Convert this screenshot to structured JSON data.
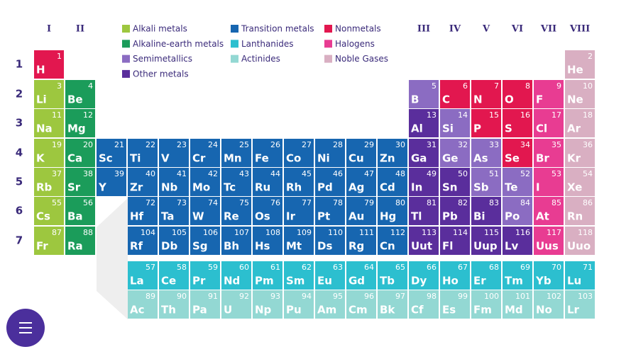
{
  "groups": [
    "I",
    "II",
    "III",
    "IV",
    "V",
    "VI",
    "VII",
    "VIII"
  ],
  "periods": [
    "1",
    "2",
    "3",
    "4",
    "5",
    "6",
    "7"
  ],
  "legend": [
    [
      {
        "name": "Alkali metals",
        "color": "#9dc73f"
      },
      {
        "name": "Alkaline-earth metals",
        "color": "#1b9c5a"
      },
      {
        "name": "Semimetallics",
        "color": "#8b6cc2"
      },
      {
        "name": "Other metals",
        "color": "#5a2e9c"
      }
    ],
    [
      {
        "name": "Transition metals",
        "color": "#1766b0"
      },
      {
        "name": "Lanthanides",
        "color": "#2cbfcf"
      },
      {
        "name": "Actinides",
        "color": "#93d8d3"
      }
    ],
    [
      {
        "name": "Nonmetals",
        "color": "#e2174f"
      },
      {
        "name": "Halogens",
        "color": "#e83c92"
      },
      {
        "name": "Noble Gases",
        "color": "#d9afc2"
      }
    ]
  ],
  "elements": [
    {
      "number": 1,
      "symbol": "H",
      "category": "Nonmetals"
    },
    {
      "number": 2,
      "symbol": "He",
      "category": "Noble Gases"
    },
    {
      "number": 3,
      "symbol": "Li",
      "category": "Alkali metals"
    },
    {
      "number": 4,
      "symbol": "Be",
      "category": "Alkaline-earth metals"
    },
    {
      "number": 5,
      "symbol": "B",
      "category": "Semimetallics"
    },
    {
      "number": 6,
      "symbol": "C",
      "category": "Nonmetals"
    },
    {
      "number": 7,
      "symbol": "N",
      "category": "Nonmetals"
    },
    {
      "number": 8,
      "symbol": "O",
      "category": "Nonmetals"
    },
    {
      "number": 9,
      "symbol": "F",
      "category": "Halogens"
    },
    {
      "number": 10,
      "symbol": "Ne",
      "category": "Noble Gases"
    },
    {
      "number": 11,
      "symbol": "Na",
      "category": "Alkali metals"
    },
    {
      "number": 12,
      "symbol": "Mg",
      "category": "Alkaline-earth metals"
    },
    {
      "number": 13,
      "symbol": "Al",
      "category": "Other metals"
    },
    {
      "number": 14,
      "symbol": "Si",
      "category": "Semimetallics"
    },
    {
      "number": 15,
      "symbol": "P",
      "category": "Nonmetals"
    },
    {
      "number": 16,
      "symbol": "S",
      "category": "Nonmetals"
    },
    {
      "number": 17,
      "symbol": "Cl",
      "category": "Halogens"
    },
    {
      "number": 18,
      "symbol": "Ar",
      "category": "Noble Gases"
    },
    {
      "number": 19,
      "symbol": "K",
      "category": "Alkali metals"
    },
    {
      "number": 20,
      "symbol": "Ca",
      "category": "Alkaline-earth metals"
    },
    {
      "number": 21,
      "symbol": "Sc",
      "category": "Transition metals"
    },
    {
      "number": 22,
      "symbol": "Ti",
      "category": "Transition metals"
    },
    {
      "number": 23,
      "symbol": "V",
      "category": "Transition metals"
    },
    {
      "number": 24,
      "symbol": "Cr",
      "category": "Transition metals"
    },
    {
      "number": 25,
      "symbol": "Mn",
      "category": "Transition metals"
    },
    {
      "number": 26,
      "symbol": "Fe",
      "category": "Transition metals"
    },
    {
      "number": 27,
      "symbol": "Co",
      "category": "Transition metals"
    },
    {
      "number": 28,
      "symbol": "Ni",
      "category": "Transition metals"
    },
    {
      "number": 29,
      "symbol": "Cu",
      "category": "Transition metals"
    },
    {
      "number": 30,
      "symbol": "Zn",
      "category": "Transition metals"
    },
    {
      "number": 31,
      "symbol": "Ga",
      "category": "Other metals"
    },
    {
      "number": 32,
      "symbol": "Ge",
      "category": "Semimetallics"
    },
    {
      "number": 33,
      "symbol": "As",
      "category": "Semimetallics"
    },
    {
      "number": 34,
      "symbol": "Se",
      "category": "Nonmetals"
    },
    {
      "number": 35,
      "symbol": "Br",
      "category": "Halogens"
    },
    {
      "number": 36,
      "symbol": "Kr",
      "category": "Noble Gases"
    },
    {
      "number": 37,
      "symbol": "Rb",
      "category": "Alkali metals"
    },
    {
      "number": 38,
      "symbol": "Sr",
      "category": "Alkaline-earth metals"
    },
    {
      "number": 39,
      "symbol": "Y",
      "category": "Transition metals"
    },
    {
      "number": 40,
      "symbol": "Zr",
      "category": "Transition metals"
    },
    {
      "number": 41,
      "symbol": "Nb",
      "category": "Transition metals"
    },
    {
      "number": 42,
      "symbol": "Mo",
      "category": "Transition metals"
    },
    {
      "number": 43,
      "symbol": "Tc",
      "category": "Transition metals"
    },
    {
      "number": 44,
      "symbol": "Ru",
      "category": "Transition metals"
    },
    {
      "number": 45,
      "symbol": "Rh",
      "category": "Transition metals"
    },
    {
      "number": 46,
      "symbol": "Pd",
      "category": "Transition metals"
    },
    {
      "number": 47,
      "symbol": "Ag",
      "category": "Transition metals"
    },
    {
      "number": 48,
      "symbol": "Cd",
      "category": "Transition metals"
    },
    {
      "number": 49,
      "symbol": "In",
      "category": "Other metals"
    },
    {
      "number": 50,
      "symbol": "Sn",
      "category": "Other metals"
    },
    {
      "number": 51,
      "symbol": "Sb",
      "category": "Semimetallics"
    },
    {
      "number": 52,
      "symbol": "Te",
      "category": "Semimetallics"
    },
    {
      "number": 53,
      "symbol": "I",
      "category": "Halogens"
    },
    {
      "number": 54,
      "symbol": "Xe",
      "category": "Noble Gases"
    },
    {
      "number": 55,
      "symbol": "Cs",
      "category": "Alkali metals"
    },
    {
      "number": 56,
      "symbol": "Ba",
      "category": "Alkaline-earth metals"
    },
    {
      "number": 57,
      "symbol": "La",
      "category": "Lanthanides"
    },
    {
      "number": 58,
      "symbol": "Ce",
      "category": "Lanthanides"
    },
    {
      "number": 59,
      "symbol": "Pr",
      "category": "Lanthanides"
    },
    {
      "number": 60,
      "symbol": "Nd",
      "category": "Lanthanides"
    },
    {
      "number": 61,
      "symbol": "Pm",
      "category": "Lanthanides"
    },
    {
      "number": 62,
      "symbol": "Sm",
      "category": "Lanthanides"
    },
    {
      "number": 63,
      "symbol": "Eu",
      "category": "Lanthanides"
    },
    {
      "number": 64,
      "symbol": "Gd",
      "category": "Lanthanides"
    },
    {
      "number": 65,
      "symbol": "Tb",
      "category": "Lanthanides"
    },
    {
      "number": 66,
      "symbol": "Dy",
      "category": "Lanthanides"
    },
    {
      "number": 67,
      "symbol": "Ho",
      "category": "Lanthanides"
    },
    {
      "number": 68,
      "symbol": "Er",
      "category": "Lanthanides"
    },
    {
      "number": 69,
      "symbol": "Tm",
      "category": "Lanthanides"
    },
    {
      "number": 70,
      "symbol": "Yb",
      "category": "Lanthanides"
    },
    {
      "number": 71,
      "symbol": "Lu",
      "category": "Lanthanides"
    },
    {
      "number": 72,
      "symbol": "Hf",
      "category": "Transition metals"
    },
    {
      "number": 73,
      "symbol": "Ta",
      "category": "Transition metals"
    },
    {
      "number": 74,
      "symbol": "W",
      "category": "Transition metals"
    },
    {
      "number": 75,
      "symbol": "Re",
      "category": "Transition metals"
    },
    {
      "number": 76,
      "symbol": "Os",
      "category": "Transition metals"
    },
    {
      "number": 77,
      "symbol": "Ir",
      "category": "Transition metals"
    },
    {
      "number": 78,
      "symbol": "Pt",
      "category": "Transition metals"
    },
    {
      "number": 79,
      "symbol": "Au",
      "category": "Transition metals"
    },
    {
      "number": 80,
      "symbol": "Hg",
      "category": "Transition metals"
    },
    {
      "number": 81,
      "symbol": "Tl",
      "category": "Other metals"
    },
    {
      "number": 82,
      "symbol": "Pb",
      "category": "Other metals"
    },
    {
      "number": 83,
      "symbol": "Bi",
      "category": "Other metals"
    },
    {
      "number": 84,
      "symbol": "Po",
      "category": "Semimetallics"
    },
    {
      "number": 85,
      "symbol": "At",
      "category": "Halogens"
    },
    {
      "number": 86,
      "symbol": "Rn",
      "category": "Noble Gases"
    },
    {
      "number": 87,
      "symbol": "Fr",
      "category": "Alkali metals"
    },
    {
      "number": 88,
      "symbol": "Ra",
      "category": "Alkaline-earth metals"
    },
    {
      "number": 89,
      "symbol": "Ac",
      "category": "Actinides"
    },
    {
      "number": 90,
      "symbol": "Th",
      "category": "Actinides"
    },
    {
      "number": 91,
      "symbol": "Pa",
      "category": "Actinides"
    },
    {
      "number": 92,
      "symbol": "U",
      "category": "Actinides"
    },
    {
      "number": 93,
      "symbol": "Np",
      "category": "Actinides"
    },
    {
      "number": 94,
      "symbol": "Pu",
      "category": "Actinides"
    },
    {
      "number": 95,
      "symbol": "Am",
      "category": "Actinides"
    },
    {
      "number": 96,
      "symbol": "Cm",
      "category": "Actinides"
    },
    {
      "number": 97,
      "symbol": "Bk",
      "category": "Actinides"
    },
    {
      "number": 98,
      "symbol": "Cf",
      "category": "Actinides"
    },
    {
      "number": 99,
      "symbol": "Es",
      "category": "Actinides"
    },
    {
      "number": 100,
      "symbol": "Fm",
      "category": "Actinides"
    },
    {
      "number": 101,
      "symbol": "Md",
      "category": "Actinides"
    },
    {
      "number": 102,
      "symbol": "No",
      "category": "Actinides"
    },
    {
      "number": 103,
      "symbol": "Lr",
      "category": "Actinides"
    },
    {
      "number": 104,
      "symbol": "Rf",
      "category": "Transition metals"
    },
    {
      "number": 105,
      "symbol": "Db",
      "category": "Transition metals"
    },
    {
      "number": 106,
      "symbol": "Sg",
      "category": "Transition metals"
    },
    {
      "number": 107,
      "symbol": "Bh",
      "category": "Transition metals"
    },
    {
      "number": 108,
      "symbol": "Hs",
      "category": "Transition metals"
    },
    {
      "number": 109,
      "symbol": "Mt",
      "category": "Transition metals"
    },
    {
      "number": 110,
      "symbol": "Ds",
      "category": "Transition metals"
    },
    {
      "number": 111,
      "symbol": "Rg",
      "category": "Transition metals"
    },
    {
      "number": 112,
      "symbol": "Cn",
      "category": "Transition metals"
    },
    {
      "number": 113,
      "symbol": "Uut",
      "category": "Other metals"
    },
    {
      "number": 114,
      "symbol": "Fl",
      "category": "Other metals"
    },
    {
      "number": 115,
      "symbol": "Uup",
      "category": "Other metals"
    },
    {
      "number": 116,
      "symbol": "Lv",
      "category": "Other metals"
    },
    {
      "number": 117,
      "symbol": "Uus",
      "category": "Halogens"
    },
    {
      "number": 118,
      "symbol": "Uuo",
      "category": "Noble Gases"
    }
  ]
}
